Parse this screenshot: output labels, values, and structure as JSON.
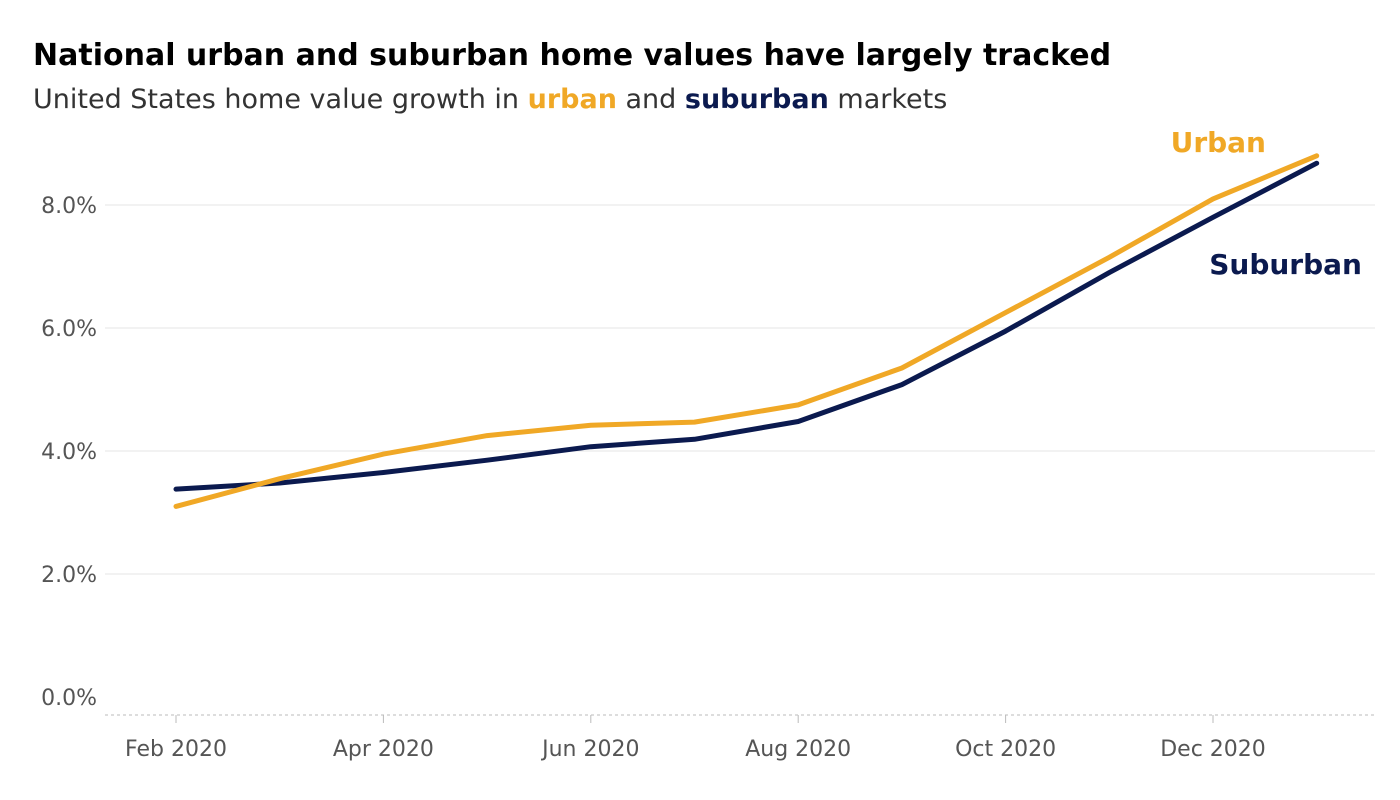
{
  "subtitle": {
    "prefix": "United States home value growth in ",
    "urban_word": "urban",
    "middle": " and ",
    "suburban_word": "suburban",
    "suffix": " markets"
  },
  "colors": {
    "urban": "#F0A826",
    "suburban": "#0B1A4F",
    "grid": "#e6e6e6",
    "axis": "#bbbbbb"
  },
  "chart_data": {
    "type": "line",
    "title": "National urban and suburban home values have largely tracked",
    "x": [
      "2020-02",
      "2020-03",
      "2020-04",
      "2020-05",
      "2020-06",
      "2020-07",
      "2020-08",
      "2020-09",
      "2020-10",
      "2020-11",
      "2020-12",
      "2021-01"
    ],
    "x_tick_labels": [
      "Feb 2020",
      "Apr 2020",
      "Jun 2020",
      "Aug 2020",
      "Oct 2020",
      "Dec 2020"
    ],
    "series": [
      {
        "name": "Urban",
        "values": [
          3.1,
          3.55,
          3.95,
          4.25,
          4.42,
          4.47,
          4.75,
          5.35,
          6.25,
          7.15,
          8.1,
          8.8
        ]
      },
      {
        "name": "Suburban",
        "values": [
          3.38,
          3.48,
          3.65,
          3.85,
          4.07,
          4.19,
          4.48,
          5.08,
          5.95,
          6.9,
          7.8,
          8.68
        ]
      }
    ],
    "y_ticks": [
      0,
      2,
      4,
      6,
      8
    ],
    "y_tick_labels": [
      "0.0%",
      "2.0%",
      "4.0%",
      "6.0%",
      "8.0%"
    ],
    "ylim": [
      0,
      8.8
    ],
    "grid": true,
    "legend": "direct labels at line ends"
  }
}
